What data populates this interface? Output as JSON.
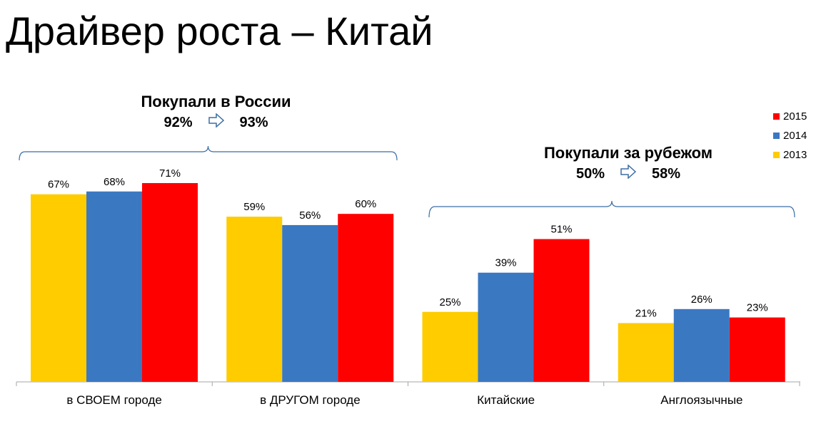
{
  "page": {
    "title": "Драйвер роста – Китай"
  },
  "groups": [
    {
      "title": "Покупали в России",
      "from": "92%",
      "to": "93%"
    },
    {
      "title": "Покупали за рубежом",
      "from": "50%",
      "to": "58%"
    }
  ],
  "colors": {
    "2013": "#FFCC00",
    "2014": "#3A78C2",
    "2015": "#FF0000",
    "axis": "#A6A6A6",
    "bracket": "#3B6EA5"
  },
  "icons": {
    "change_arrow": "right-outline-arrow-icon"
  },
  "legend": {
    "items": [
      {
        "name": "2015",
        "color": "#FF0000"
      },
      {
        "name": "2014",
        "color": "#3A78C2"
      },
      {
        "name": "2013",
        "color": "#FFCC00"
      }
    ],
    "placement": "top-right"
  },
  "chart_data": {
    "type": "bar",
    "categories": [
      "в СВОЕМ городе",
      "в ДРУГОМ городе",
      "Китайские",
      "Англоязычные"
    ],
    "series": [
      {
        "name": "2013",
        "values": [
          67,
          59,
          25,
          21
        ],
        "labels": [
          "67%",
          "59%",
          "25%",
          "21%"
        ]
      },
      {
        "name": "2014",
        "values": [
          68,
          56,
          39,
          26
        ],
        "labels": [
          "68%",
          "56%",
          "39%",
          "26%"
        ]
      },
      {
        "name": "2015",
        "values": [
          71,
          60,
          51,
          23
        ],
        "labels": [
          "71%",
          "60%",
          "51%",
          "23%"
        ]
      }
    ],
    "ylim": [
      0,
      100
    ],
    "grid": false,
    "legend": "top-right"
  }
}
